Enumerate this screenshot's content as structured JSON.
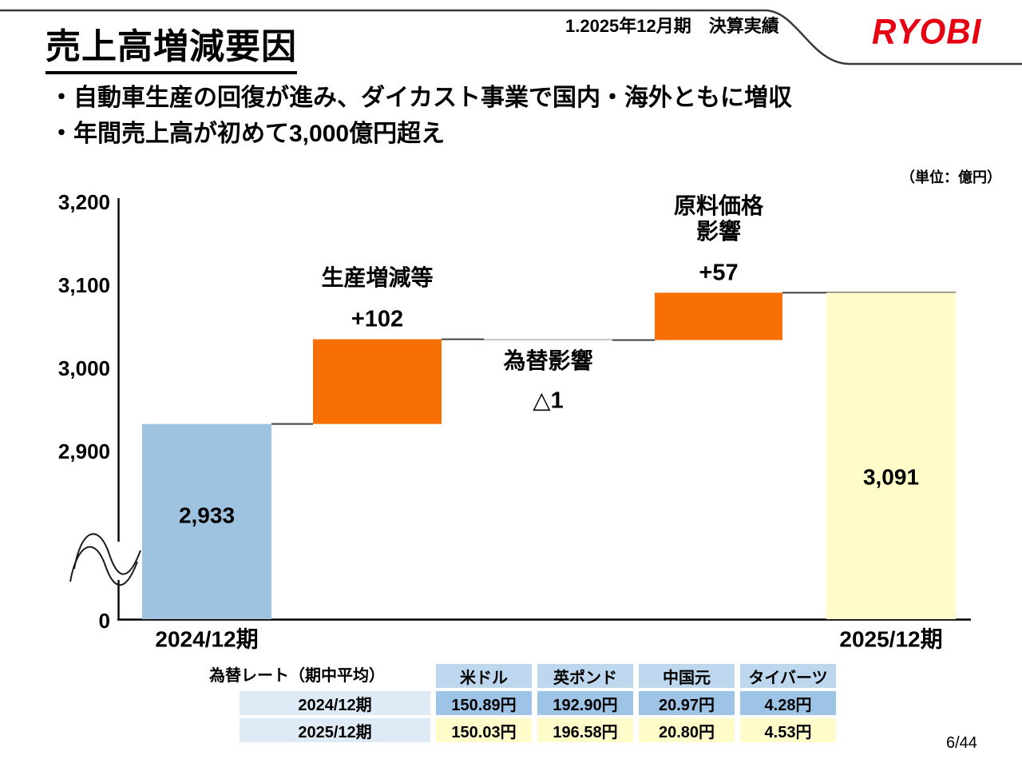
{
  "header": {
    "section_label": "1.2025年12月期　決算実績",
    "logo_text": "RYOBI",
    "logo_color": "#E60012"
  },
  "slide": {
    "title": "売上高増減要因",
    "bullets": [
      "・自動車生産の回復が進み、ダイカスト事業で国内・海外ともに増収",
      "・年間売上高が初めて3,000億円超え"
    ],
    "page_number": "6/44"
  },
  "chart_data": {
    "type": "waterfall",
    "unit_label": "（単位：億円）",
    "ylim": [
      0,
      3200
    ],
    "axis_break": true,
    "grid": false,
    "y_ticks": [
      {
        "value": 0,
        "label": "0"
      },
      {
        "value": 2900,
        "label": "2,900"
      },
      {
        "value": 3000,
        "label": "3,000"
      },
      {
        "value": 3100,
        "label": "3,100"
      },
      {
        "value": 3200,
        "label": "3,200"
      }
    ],
    "colors": {
      "total_start": "#9DC3E1",
      "increase": "#F86F05",
      "total_end": "#FFFCCA",
      "connector": "#3f3f3f",
      "ghost_bar": "#c4c4c4"
    },
    "bars": [
      {
        "kind": "total",
        "axis_label": "2024/12期",
        "value": 2933,
        "value_label": "2,933",
        "color_key": "total_start"
      },
      {
        "kind": "delta",
        "name_lines": [
          "生産増減等"
        ],
        "delta": 102,
        "delta_label": "+102",
        "color_key": "increase",
        "label_position": "above"
      },
      {
        "kind": "delta",
        "name_lines": [
          "為替影響"
        ],
        "delta": -1,
        "delta_label": "△1",
        "color_key": null,
        "label_position": "below"
      },
      {
        "kind": "delta",
        "name_lines": [
          "原料価格",
          "影響"
        ],
        "delta": 57,
        "delta_label": "+57",
        "color_key": "increase",
        "label_position": "above"
      },
      {
        "kind": "total",
        "axis_label": "2025/12期",
        "value": 3091,
        "value_label": "3,091",
        "color_key": "total_end"
      }
    ]
  },
  "fx_table": {
    "caption": "為替レート（期中平均）",
    "header_bg": "#BDD7EE",
    "columns": [
      "米ドル",
      "英ポンド",
      "中国元",
      "タイバーツ"
    ],
    "rows": [
      {
        "label": "2024/12期",
        "label_bg": "#DEEAF6",
        "value_bg": "#9DC3E6",
        "values": [
          "150.89円",
          "192.90円",
          "20.97円",
          "4.28円"
        ]
      },
      {
        "label": "2025/12期",
        "label_bg": "#DEEAF6",
        "value_bg": "#FFFCCA",
        "values": [
          "150.03円",
          "196.58円",
          "20.80円",
          "4.53円"
        ]
      }
    ]
  }
}
